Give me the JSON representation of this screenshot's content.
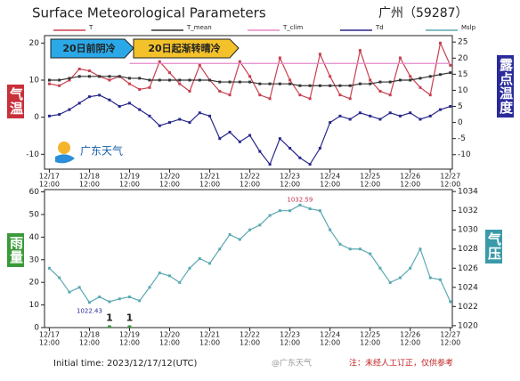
{
  "header": {
    "title": "Surface Meteorological Parameters",
    "station": "广州（59287）"
  },
  "footer": {
    "initial_time": "Initial time: 2023/12/17/12(UTC)",
    "watermark": "@广东天气",
    "note": "注：未经人工订正，仅供参考"
  },
  "chart_data": [
    {
      "type": "line",
      "logo": "广东天气",
      "annotations": [
        "20日前阴冷",
        "20日起渐转晴冷"
      ],
      "ylabel": "气温",
      "y2label": "露点温度",
      "x": [
        0,
        0.25,
        0.5,
        0.75,
        1,
        1.25,
        1.5,
        1.75,
        2,
        2.25,
        2.5,
        2.75,
        3,
        3.25,
        3.5,
        3.75,
        4,
        4.25,
        4.5,
        4.75,
        5,
        5.25,
        5.5,
        5.75,
        6,
        6.25,
        6.5,
        6.75,
        7,
        7.25,
        7.5,
        7.75,
        8,
        8.25,
        8.5,
        8.75,
        9,
        9.25,
        9.5,
        9.75,
        10
      ],
      "xlim": [
        -0.12,
        10.05
      ],
      "xticks": [
        {
          "value": 0,
          "label": "12/17"
        },
        {
          "value": 1,
          "label": "12/18"
        },
        {
          "value": 2,
          "label": "12/19"
        },
        {
          "value": 3,
          "label": "12/20"
        },
        {
          "value": 4,
          "label": "12/21"
        },
        {
          "value": 5,
          "label": "12/22"
        },
        {
          "value": 6,
          "label": "12/23"
        },
        {
          "value": 7,
          "label": "12/24"
        },
        {
          "value": 8,
          "label": "12/25"
        },
        {
          "value": 9,
          "label": "12/26"
        },
        {
          "value": 10,
          "label": "12/27"
        }
      ],
      "xtick_sublabel": "12:00",
      "ylim": [
        -14,
        22
      ],
      "yticks": [
        -10,
        0,
        10,
        20
      ],
      "y2lim": [
        -14.5,
        27
      ],
      "y2ticks": [
        -10,
        -5,
        0,
        5,
        10,
        15,
        20,
        25
      ],
      "series": [
        {
          "name": "T",
          "color": "#c8404f",
          "marker": true,
          "values": [
            9,
            8.5,
            10,
            13,
            12.5,
            11,
            10,
            11,
            9,
            7.5,
            8,
            15,
            12,
            9,
            7,
            14,
            10,
            7,
            6,
            15,
            11,
            6,
            5,
            16,
            10,
            6,
            5,
            17,
            11,
            6,
            5,
            18,
            10,
            7,
            6,
            16,
            11,
            8,
            6,
            20,
            14
          ]
        },
        {
          "name": "T_mean",
          "color": "#333333",
          "marker": true,
          "values": [
            10,
            10,
            10.5,
            11,
            11,
            11,
            11,
            11,
            10.5,
            10.5,
            10,
            10,
            10,
            10,
            10,
            10,
            10,
            9.5,
            9.5,
            9.5,
            9.5,
            9,
            9,
            9,
            9,
            8.5,
            8.5,
            8.5,
            8.5,
            8.5,
            8.5,
            9,
            9,
            9.5,
            9.5,
            10,
            10,
            10.5,
            11,
            11.5,
            12
          ]
        },
        {
          "name": "T_clim",
          "color": "#e48ac8",
          "marker": false,
          "x": [
            2,
            10
          ],
          "values": [
            14.5,
            14.5
          ]
        },
        {
          "name": "Td",
          "color": "#27278c",
          "marker": true,
          "axis": "y2",
          "values": [
            2,
            2.5,
            4,
            6,
            8,
            8.5,
            7,
            5,
            6,
            4,
            2,
            -1,
            0,
            1,
            0,
            3,
            2,
            -5,
            -3,
            -6,
            -4,
            -9,
            -13,
            -5,
            -8,
            -11,
            -13,
            -8,
            0,
            2,
            1,
            3,
            2,
            1,
            3,
            2,
            3,
            1,
            2,
            4,
            5
          ]
        }
      ]
    },
    {
      "type": "line",
      "ylabel": "雨量",
      "y2label": "气压",
      "max_label": 1032.59,
      "min_label": 1022.43,
      "x": [
        0,
        0.25,
        0.5,
        0.75,
        1,
        1.25,
        1.5,
        1.75,
        2,
        2.25,
        2.5,
        2.75,
        3,
        3.25,
        3.5,
        3.75,
        4,
        4.25,
        4.5,
        4.75,
        5,
        5.25,
        5.5,
        5.75,
        6,
        6.25,
        6.5,
        6.75,
        7,
        7.25,
        7.5,
        7.75,
        8,
        8.25,
        8.5,
        8.75,
        9,
        9.25,
        9.5,
        9.75,
        10
      ],
      "xlim": [
        -0.12,
        10.05
      ],
      "xticks": [
        {
          "value": 0,
          "label": "12/17"
        },
        {
          "value": 1,
          "label": "12/18"
        },
        {
          "value": 2,
          "label": "12/19"
        },
        {
          "value": 3,
          "label": "12/20"
        },
        {
          "value": 4,
          "label": "12/21"
        },
        {
          "value": 5,
          "label": "12/22"
        },
        {
          "value": 6,
          "label": "12/23"
        },
        {
          "value": 7,
          "label": "12/24"
        },
        {
          "value": 8,
          "label": "12/25"
        },
        {
          "value": 9,
          "label": "12/26"
        },
        {
          "value": 10,
          "label": "12/27"
        }
      ],
      "xtick_sublabel": "12:00",
      "ylim": [
        0,
        61
      ],
      "yticks": [
        0,
        10,
        20,
        30,
        40,
        50,
        60
      ],
      "y2lim": [
        1019.8,
        1034.2
      ],
      "y2ticks": [
        1020,
        1022,
        1024,
        1026,
        1028,
        1030,
        1032,
        1034
      ],
      "rain": {
        "color": "#3a9a3a",
        "values": [
          0,
          0,
          0,
          0,
          0,
          0,
          1,
          0,
          1,
          0,
          0,
          0,
          0,
          0,
          0,
          0,
          0,
          0,
          0,
          0,
          0,
          0,
          0,
          0,
          0,
          0,
          0,
          0,
          0,
          0,
          0,
          0,
          0,
          0,
          0,
          0,
          0,
          0,
          0,
          0,
          0
        ]
      },
      "series": [
        {
          "name": "Mslp",
          "color": "#5aa9b2",
          "marker": true,
          "axis": "y2",
          "values": [
            1026,
            1025,
            1023.5,
            1024,
            1022.43,
            1023,
            1022.5,
            1022.8,
            1023,
            1022.6,
            1024,
            1025.5,
            1025.2,
            1024.5,
            1026,
            1027,
            1026.5,
            1028,
            1029.5,
            1029,
            1030,
            1030.5,
            1031.5,
            1032,
            1032,
            1032.59,
            1032.2,
            1032,
            1030,
            1028.5,
            1028,
            1028,
            1027.5,
            1026,
            1024.5,
            1025,
            1026,
            1028,
            1025,
            1024.8,
            1022.5
          ]
        }
      ]
    }
  ]
}
